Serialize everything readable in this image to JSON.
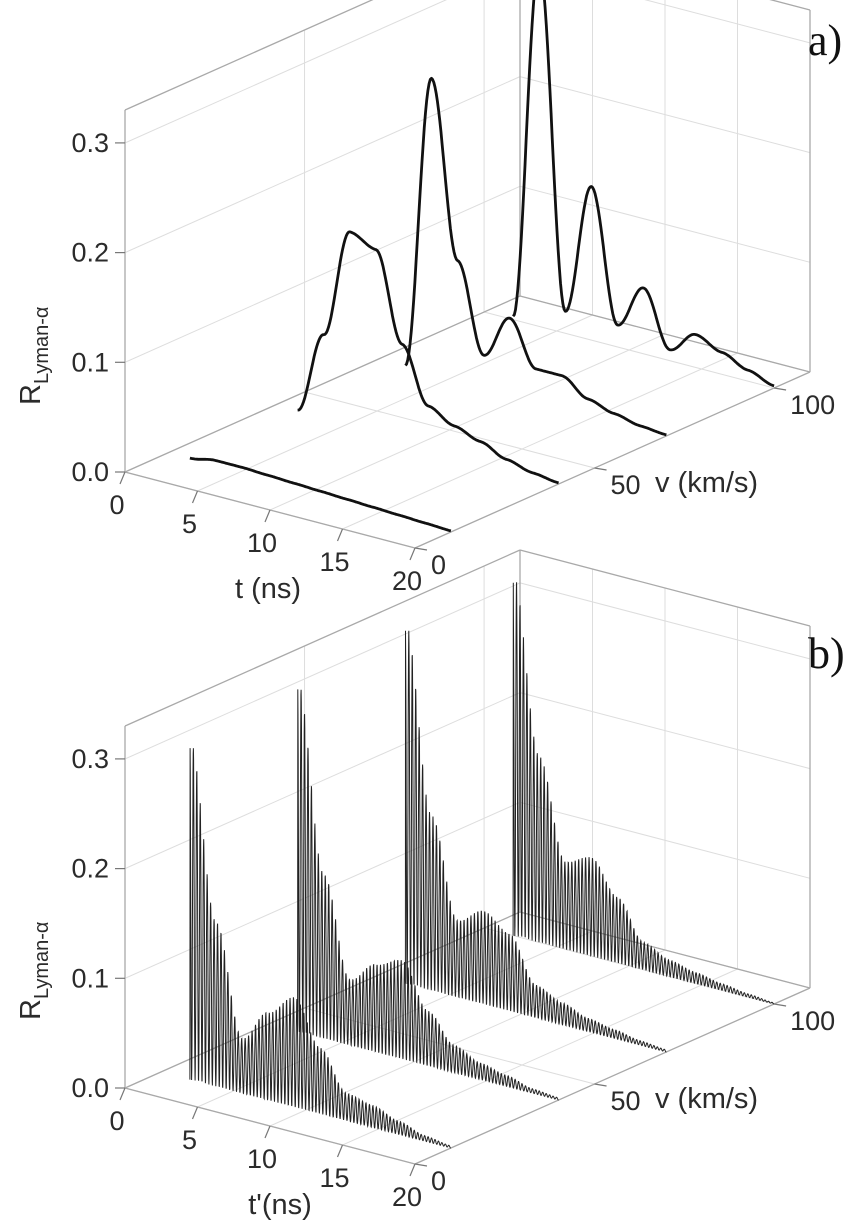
{
  "chart_data": [
    {
      "type": "line",
      "panel_label": "a)",
      "zlabel_main": "R",
      "zlabel_sub": "Lyman-α",
      "xlabel": "t (ns)",
      "ylabel": "v (km/s)",
      "x_ticks": [
        "0",
        "5",
        "10",
        "15",
        "20"
      ],
      "y_ticks": [
        "0",
        "50",
        "100"
      ],
      "z_ticks": [
        "0.0",
        "0.1",
        "0.2",
        "0.3"
      ],
      "xlim": [
        0,
        20
      ],
      "ylim": [
        0,
        110
      ],
      "zlim": [
        0,
        0.33
      ],
      "grid": true,
      "series": [
        {
          "name": "v = 10 km/s",
          "v": 10,
          "values": [
            0.005,
            0.009,
            0.009,
            0.008,
            0.007,
            0.006,
            0.005,
            0.004,
            0.003,
            0.002,
            0.001
          ]
        },
        {
          "name": "v = 40 km/s",
          "v": 40,
          "values": [
            0.005,
            0.08,
            0.18,
            0.17,
            0.09,
            0.04,
            0.028,
            0.02,
            0.01,
            0.004,
            0.001
          ]
        },
        {
          "name": "v = 70 km/s",
          "v": 70,
          "values": [
            0.002,
            0.27,
            0.11,
            0.03,
            0.07,
            0.03,
            0.03,
            0.015,
            0.008,
            0.003,
            0.001
          ]
        },
        {
          "name": "v = 100 km/s",
          "v": 100,
          "values": [
            0.003,
            0.33,
            0.02,
            0.14,
            0.02,
            0.06,
            0.01,
            0.03,
            0.02,
            0.01,
            0.002
          ]
        }
      ]
    },
    {
      "type": "line",
      "panel_label": "b)",
      "zlabel_main": "R",
      "zlabel_sub": "Lyman-α",
      "xlabel": "t'(ns)",
      "ylabel": "v (km/s)",
      "x_ticks": [
        "0",
        "5",
        "10",
        "15",
        "20"
      ],
      "y_ticks": [
        "0",
        "50",
        "100"
      ],
      "z_ticks": [
        "0.0",
        "0.1",
        "0.2",
        "0.3"
      ],
      "xlim": [
        0,
        20
      ],
      "ylim": [
        0,
        110
      ],
      "zlim": [
        0,
        0.33
      ],
      "grid": true,
      "series": [
        {
          "name": "v = 10 km/s",
          "v": 10,
          "values": [
            0.31,
            0.15,
            0.05,
            0.08,
            0.1,
            0.06,
            0.025,
            0.02,
            0.012,
            0.005,
            0.002
          ]
        },
        {
          "name": "v = 40 km/s",
          "v": 40,
          "values": [
            0.32,
            0.15,
            0.06,
            0.08,
            0.09,
            0.05,
            0.025,
            0.015,
            0.01,
            0.004,
            0.002
          ]
        },
        {
          "name": "v = 70 km/s",
          "v": 70,
          "values": [
            0.33,
            0.16,
            0.07,
            0.085,
            0.07,
            0.03,
            0.02,
            0.012,
            0.008,
            0.004,
            0.002
          ]
        },
        {
          "name": "v = 100 km/s",
          "v": 100,
          "values": [
            0.33,
            0.17,
            0.08,
            0.09,
            0.06,
            0.025,
            0.015,
            0.01,
            0.006,
            0.003,
            0.001
          ]
        }
      ]
    }
  ]
}
